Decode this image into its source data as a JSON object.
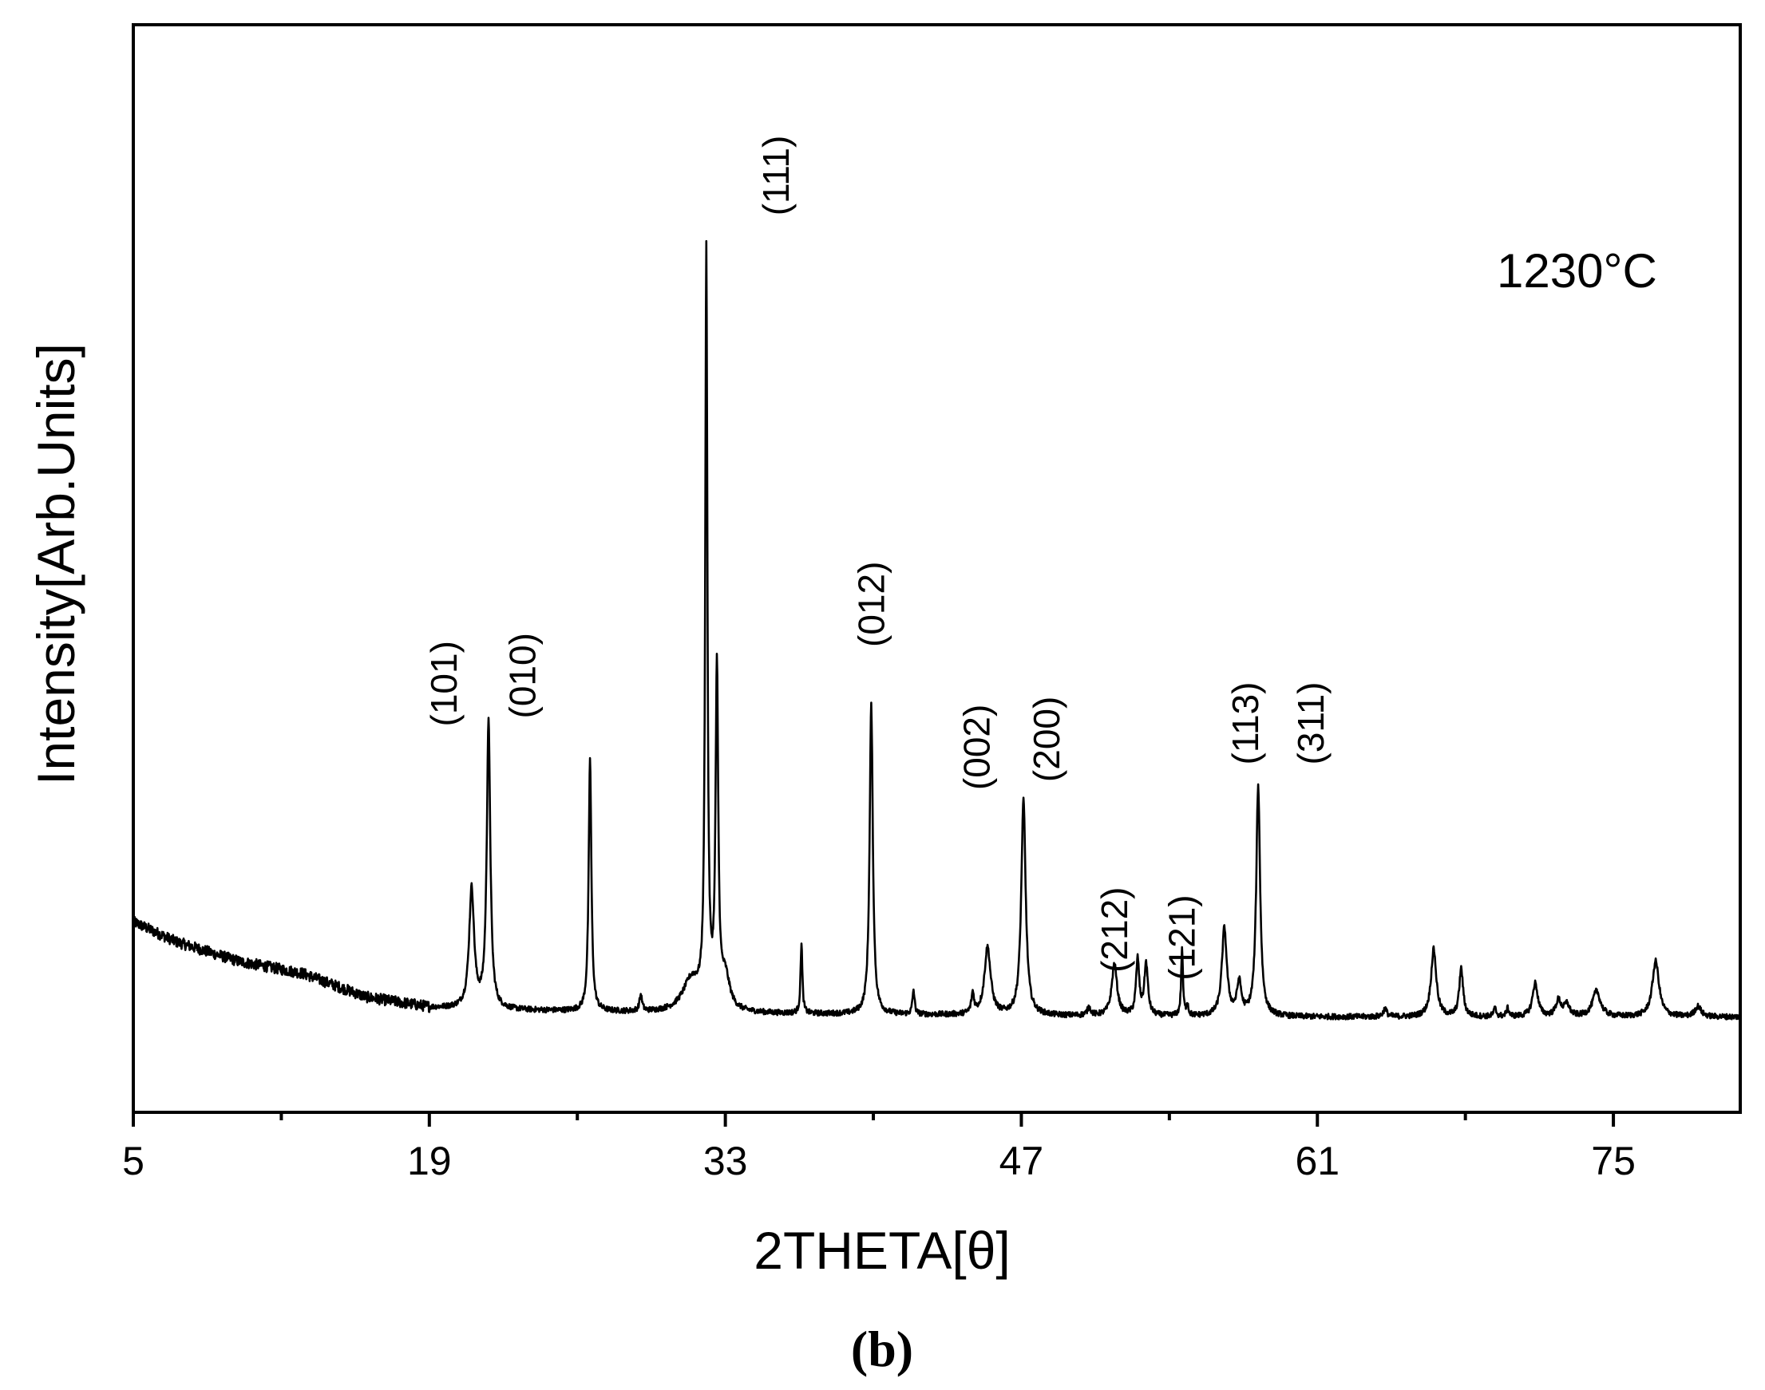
{
  "chart_data": {
    "type": "line",
    "title": "",
    "xlabel": "2THETA[θ]",
    "ylabel": "Intensity[Arb.Units]",
    "xlim": [
      5,
      81
    ],
    "ylim": [
      -12,
      125
    ],
    "x_ticks": [
      5,
      19,
      33,
      47,
      61,
      75
    ],
    "x_tick_labels": [
      "5",
      "19",
      "33",
      "47",
      "61",
      "75"
    ],
    "y_ticks_shown": false,
    "grid": false,
    "line_color": "#000000",
    "temperature_label": "1230°C",
    "panel_label": "(b)",
    "baseline": [
      {
        "x": 5,
        "y": 12
      },
      {
        "x": 7,
        "y": 9.5
      },
      {
        "x": 10,
        "y": 7
      },
      {
        "x": 13,
        "y": 5.5
      },
      {
        "x": 16,
        "y": 2.5
      },
      {
        "x": 19,
        "y": 1.2
      },
      {
        "x": 22,
        "y": 0.9
      },
      {
        "x": 30,
        "y": 0.5
      },
      {
        "x": 40,
        "y": 0.3
      },
      {
        "x": 50,
        "y": 0.1
      },
      {
        "x": 60,
        "y": 0
      },
      {
        "x": 70,
        "y": 0
      },
      {
        "x": 81,
        "y": 0
      }
    ],
    "peaks": [
      {
        "x": 21.0,
        "height": 15,
        "width": 0.28
      },
      {
        "x": 21.8,
        "height": 36,
        "width": 0.2
      },
      {
        "x": 26.6,
        "height": 32,
        "width": 0.15
      },
      {
        "x": 29.0,
        "height": 2,
        "width": 0.15
      },
      {
        "x": 31.4,
        "height": 4,
        "width": 1.0
      },
      {
        "x": 32.1,
        "height": 95,
        "width": 0.12
      },
      {
        "x": 32.6,
        "height": 42,
        "width": 0.15
      },
      {
        "x": 33.0,
        "height": 4,
        "width": 0.5
      },
      {
        "x": 36.6,
        "height": 9,
        "width": 0.1
      },
      {
        "x": 39.9,
        "height": 39,
        "width": 0.18
      },
      {
        "x": 41.9,
        "height": 3,
        "width": 0.12
      },
      {
        "x": 44.7,
        "height": 2.5,
        "width": 0.15
      },
      {
        "x": 45.4,
        "height": 8.5,
        "width": 0.35
      },
      {
        "x": 47.1,
        "height": 27,
        "width": 0.25
      },
      {
        "x": 50.2,
        "height": 1.0,
        "width": 0.2
      },
      {
        "x": 51.4,
        "height": 6.5,
        "width": 0.3
      },
      {
        "x": 52.5,
        "height": 7,
        "width": 0.18
      },
      {
        "x": 52.9,
        "height": 6.5,
        "width": 0.2
      },
      {
        "x": 54.6,
        "height": 8.5,
        "width": 0.1
      },
      {
        "x": 54.85,
        "height": 1.5,
        "width": 0.1
      },
      {
        "x": 56.6,
        "height": 11,
        "width": 0.28
      },
      {
        "x": 57.3,
        "height": 4,
        "width": 0.25
      },
      {
        "x": 58.2,
        "height": 29,
        "width": 0.22
      },
      {
        "x": 64.2,
        "height": 1.0,
        "width": 0.2
      },
      {
        "x": 66.5,
        "height": 8.5,
        "width": 0.3
      },
      {
        "x": 67.8,
        "height": 6,
        "width": 0.22
      },
      {
        "x": 69.4,
        "height": 1.0,
        "width": 0.15
      },
      {
        "x": 70.0,
        "height": 1.0,
        "width": 0.15
      },
      {
        "x": 71.3,
        "height": 4.2,
        "width": 0.3
      },
      {
        "x": 72.4,
        "height": 2.0,
        "width": 0.3
      },
      {
        "x": 72.8,
        "height": 1.5,
        "width": 0.3
      },
      {
        "x": 74.2,
        "height": 3.2,
        "width": 0.45
      },
      {
        "x": 77.0,
        "height": 7,
        "width": 0.38
      },
      {
        "x": 79.0,
        "height": 1.3,
        "width": 0.35
      }
    ],
    "annotations": [
      {
        "text": "(101)",
        "x": 20.3,
        "y": 42
      },
      {
        "text": "(010)",
        "x": 24.0,
        "y": 43
      },
      {
        "text": "(111)",
        "x": 36.0,
        "y": 106
      },
      {
        "text": "(012)",
        "x": 40.5,
        "y": 52
      },
      {
        "text": "(002)",
        "x": 45.5,
        "y": 34
      },
      {
        "text": "(200)",
        "x": 48.8,
        "y": 35
      },
      {
        "text": "(212)",
        "x": 52.0,
        "y": 11
      },
      {
        "text": "(121)",
        "x": 55.2,
        "y": 10
      },
      {
        "text": "(113)",
        "x": 58.2,
        "y": 37
      },
      {
        "text": "(311)",
        "x": 61.3,
        "y": 37
      }
    ]
  }
}
